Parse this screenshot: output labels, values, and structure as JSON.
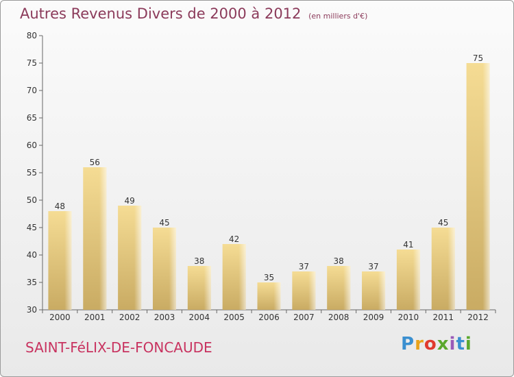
{
  "title": "Autres Revenus Divers de 2000 à 2012",
  "title_unit": "(en milliers d'€)",
  "place": "SAINT-FéLIX-DE-FONCAUDE",
  "logo": "Proxiti",
  "colors": {
    "bar_light": "#f5dc94",
    "bar_dark": "#c9ab63",
    "title": "#8b3a5a",
    "place": "#c8325f"
  },
  "chart_data": {
    "type": "bar",
    "categories": [
      "2000",
      "2001",
      "2002",
      "2003",
      "2004",
      "2005",
      "2006",
      "2007",
      "2008",
      "2009",
      "2010",
      "2011",
      "2012"
    ],
    "values": [
      48,
      56,
      49,
      45,
      38,
      42,
      35,
      37,
      38,
      37,
      41,
      45,
      75
    ],
    "title": "Autres Revenus Divers de 2000 à 2012",
    "ylim": [
      30,
      80
    ],
    "yticks": [
      30,
      35,
      40,
      45,
      50,
      55,
      60,
      65,
      70,
      75,
      80
    ],
    "grid": false
  }
}
